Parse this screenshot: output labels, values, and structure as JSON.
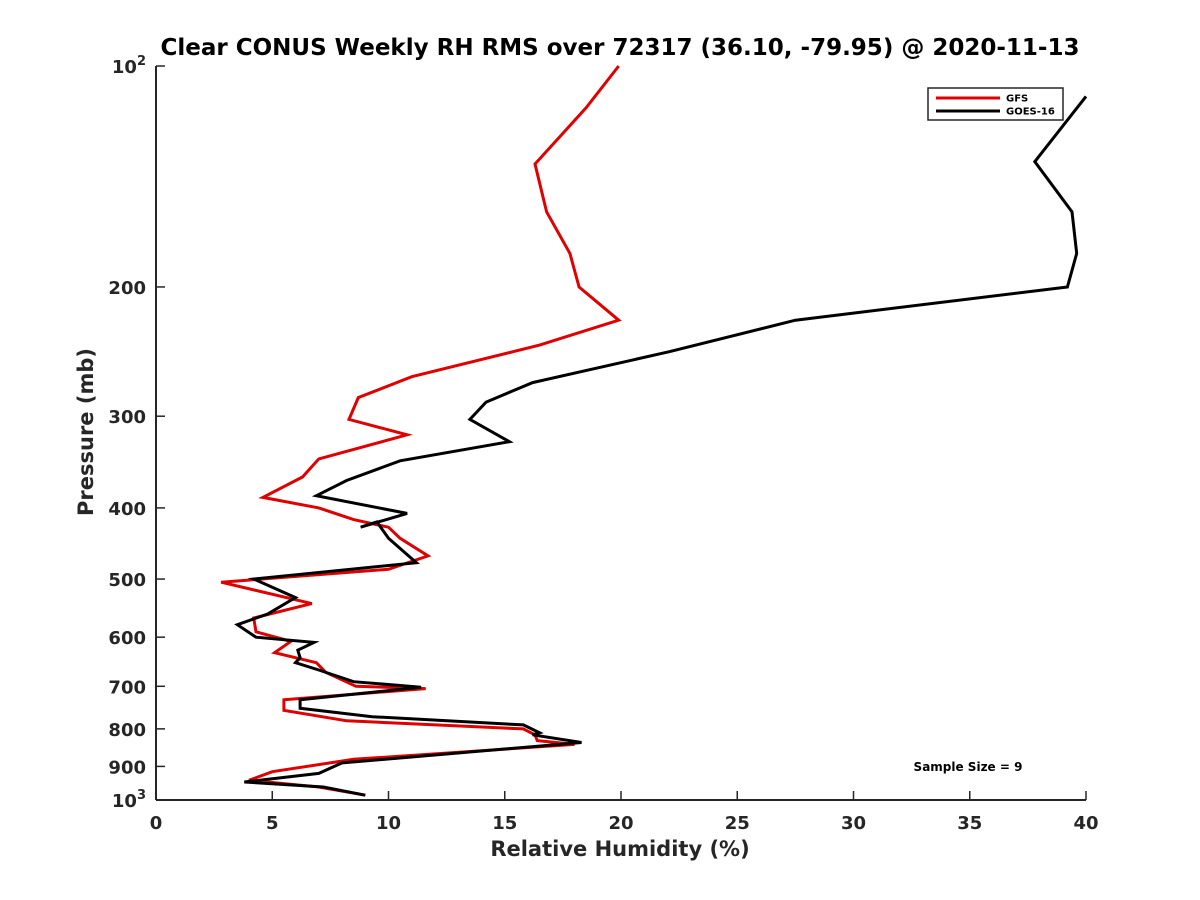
{
  "chart_data": {
    "type": "line",
    "title": "Clear CONUS Weekly RH RMS over 72317 (36.10, -79.95) @ 2020-11-13",
    "xlabel": "Relative Humidity (%)",
    "ylabel": "Pressure (mb)",
    "xlim": [
      0,
      40
    ],
    "ylim": [
      100,
      1000
    ],
    "y_scale": "log",
    "y_reversed": true,
    "x_ticks": [
      "0",
      "5",
      "10",
      "15",
      "20",
      "25",
      "30",
      "35",
      "40"
    ],
    "y_ticks": [
      {
        "value": 100,
        "base": "10",
        "exp": "2"
      },
      {
        "value": 200,
        "label": "200"
      },
      {
        "value": 300,
        "label": "300"
      },
      {
        "value": 400,
        "label": "400"
      },
      {
        "value": 500,
        "label": "500"
      },
      {
        "value": 600,
        "label": "600"
      },
      {
        "value": 700,
        "label": "700"
      },
      {
        "value": 800,
        "label": "800"
      },
      {
        "value": 900,
        "label": "900"
      },
      {
        "value": 1000,
        "base": "10",
        "exp": "3"
      }
    ],
    "legend_position": "top-right",
    "annotation": "Sample Size = 9",
    "series": [
      {
        "name": "GFS",
        "color": "#e00000",
        "x": [
          19.9,
          18.5,
          16.3,
          16.8,
          17.8,
          18.2,
          19.9,
          16.5,
          11.0,
          8.7,
          8.3,
          10.8,
          7.0,
          6.3,
          4.6,
          7.0,
          8.5,
          10.0,
          10.5,
          11.7,
          10.0,
          2.8,
          6.7,
          4.2,
          4.3,
          5.8,
          5.1,
          6.9,
          7.3,
          8.6,
          11.6,
          5.5,
          5.5,
          8.2,
          15.8,
          16.3,
          16.4,
          18.0,
          8.5,
          5.0,
          4.0,
          7.0,
          9.0
        ],
        "y": [
          100,
          114,
          136,
          158,
          180,
          200,
          222,
          240,
          265,
          283,
          303,
          318,
          343,
          363,
          387,
          400,
          415,
          425,
          440,
          465,
          485,
          505,
          540,
          565,
          590,
          608,
          630,
          650,
          670,
          700,
          705,
          730,
          755,
          780,
          800,
          815,
          830,
          840,
          880,
          915,
          940,
          960,
          985
        ]
      },
      {
        "name": "GOES-16",
        "color": "#000000",
        "x": [
          40.0,
          37.8,
          39.4,
          39.6,
          39.2,
          27.5,
          22.1,
          16.2,
          14.2,
          13.5,
          15.2,
          10.5,
          8.2,
          6.9,
          10.8,
          8.8,
          9.5,
          10.0,
          11.2,
          4.2,
          6.0,
          4.8,
          3.5,
          4.3,
          6.8,
          6.1,
          6.2,
          6.0,
          7.0,
          8.5,
          11.4,
          6.2,
          6.2,
          9.3,
          15.8,
          16.5,
          16.2,
          18.3,
          8.0,
          7.0,
          3.8,
          7.2,
          9.0
        ],
        "y": [
          110,
          135,
          158,
          180,
          200,
          222,
          245,
          270,
          287,
          303,
          325,
          345,
          367,
          385,
          407,
          425,
          418,
          440,
          475,
          500,
          530,
          558,
          577,
          600,
          610,
          625,
          640,
          650,
          665,
          690,
          702,
          730,
          750,
          770,
          790,
          810,
          815,
          835,
          890,
          920,
          945,
          960,
          985
        ]
      }
    ]
  }
}
